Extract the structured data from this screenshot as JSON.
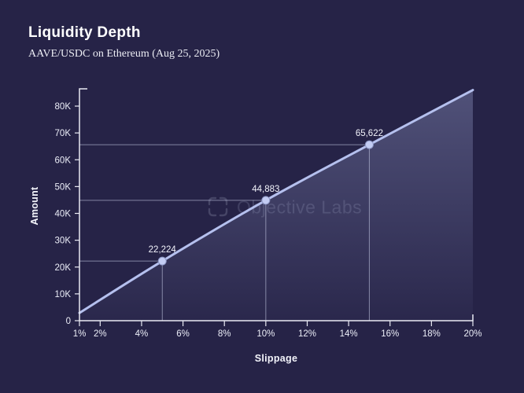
{
  "page": {
    "background": "#262347"
  },
  "header": {
    "title": "Liquidity Depth",
    "subtitle": "AAVE/USDC on Ethereum (Aug 25, 2025)"
  },
  "watermark": {
    "icon": "viewfinder-brackets-icon",
    "text": "Objective Labs"
  },
  "chart_data": {
    "type": "area",
    "title": "Liquidity Depth",
    "subtitle": "AAVE/USDC on Ethereum (Aug 25, 2025)",
    "xlabel": "Slippage",
    "ylabel": "Amount",
    "series": [
      {
        "name": "liquidity-depth",
        "x": [
          1,
          5,
          10,
          15,
          20
        ],
        "y": [
          2900,
          22224,
          44883,
          65622,
          86000
        ]
      }
    ],
    "labeled_points": [
      {
        "x": 5,
        "y": 22224,
        "label": "22,224"
      },
      {
        "x": 10,
        "y": 44883,
        "label": "44,883"
      },
      {
        "x": 15,
        "y": 65622,
        "label": "65,622"
      }
    ],
    "x_ticks": [
      {
        "v": 1,
        "label": "1%"
      },
      {
        "v": 2,
        "label": "2%"
      },
      {
        "v": 4,
        "label": "4%"
      },
      {
        "v": 6,
        "label": "6%"
      },
      {
        "v": 8,
        "label": "8%"
      },
      {
        "v": 10,
        "label": "10%"
      },
      {
        "v": 12,
        "label": "12%"
      },
      {
        "v": 14,
        "label": "14%"
      },
      {
        "v": 16,
        "label": "16%"
      },
      {
        "v": 18,
        "label": "18%"
      },
      {
        "v": 20,
        "label": "20%"
      }
    ],
    "y_ticks": [
      {
        "v": 0,
        "label": "0"
      },
      {
        "v": 10000,
        "label": "10K"
      },
      {
        "v": 20000,
        "label": "20K"
      },
      {
        "v": 30000,
        "label": "30K"
      },
      {
        "v": 40000,
        "label": "40K"
      },
      {
        "v": 50000,
        "label": "50K"
      },
      {
        "v": 60000,
        "label": "60K"
      },
      {
        "v": 70000,
        "label": "70K"
      },
      {
        "v": 80000,
        "label": "80K"
      }
    ],
    "xlim": [
      1,
      20
    ],
    "ylim": [
      0,
      86500
    ],
    "grid": "crosshair-reference-lines-at-labeled-points",
    "legend": "none",
    "colors": {
      "background": "#262347",
      "line": "#b5c0ee",
      "area_top": "rgba(178,188,236,0.30)",
      "area_bottom": "rgba(178,188,236,0.03)",
      "marker_fill": "#c3ccf3",
      "marker_stroke": "#8d96c4",
      "axis": "#e9eaf3",
      "tick_label": "#eceef8",
      "point_label": "#f2f3fb",
      "reference_line": "rgba(208,214,238,0.55)",
      "watermark_text": "rgba(198,203,232,0.17)",
      "watermark_icon": "rgba(198,203,232,0.20)"
    }
  }
}
